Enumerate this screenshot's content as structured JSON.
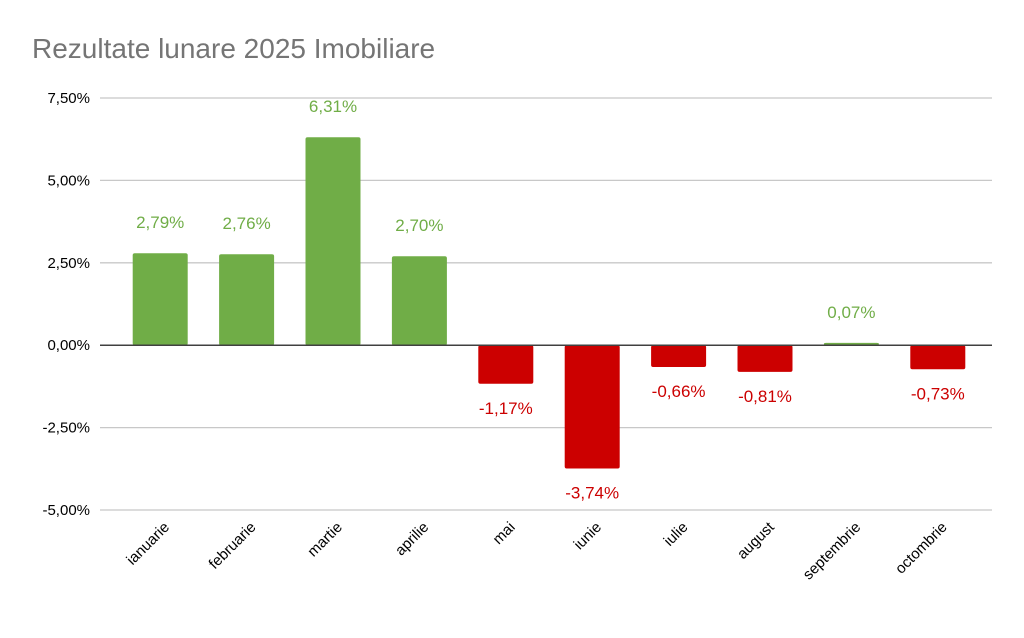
{
  "chart_data": {
    "type": "bar",
    "title": "Rezultate lunare 2025 Imobiliare",
    "xlabel": "",
    "ylabel": "",
    "categories": [
      "ianuarie",
      "februarie",
      "martie",
      "aprilie",
      "mai",
      "iunie",
      "iulie",
      "august",
      "septembrie",
      "octombrie"
    ],
    "values": [
      2.79,
      2.76,
      6.31,
      2.7,
      -1.17,
      -3.74,
      -0.66,
      -0.81,
      0.07,
      -0.73
    ],
    "data_labels": [
      "2,79%",
      "2,76%",
      "6,31%",
      "2,70%",
      "-1,17%",
      "-3,74%",
      "-0,66%",
      "-0,81%",
      "0,07%",
      "-0,73%"
    ],
    "ylim": [
      -5,
      7.5
    ],
    "yticks": [
      7.5,
      5,
      2.5,
      0,
      -2.5,
      -5
    ],
    "ytick_labels": [
      "7,50%",
      "5,00%",
      "2,50%",
      "0,00%",
      "-2,50%",
      "-5,00%"
    ],
    "grid": true,
    "legend": "none",
    "colors": {
      "positive": "#70ad47",
      "negative": "#cc0000",
      "grid": "#c8c8c8",
      "axis": "#404040"
    }
  }
}
